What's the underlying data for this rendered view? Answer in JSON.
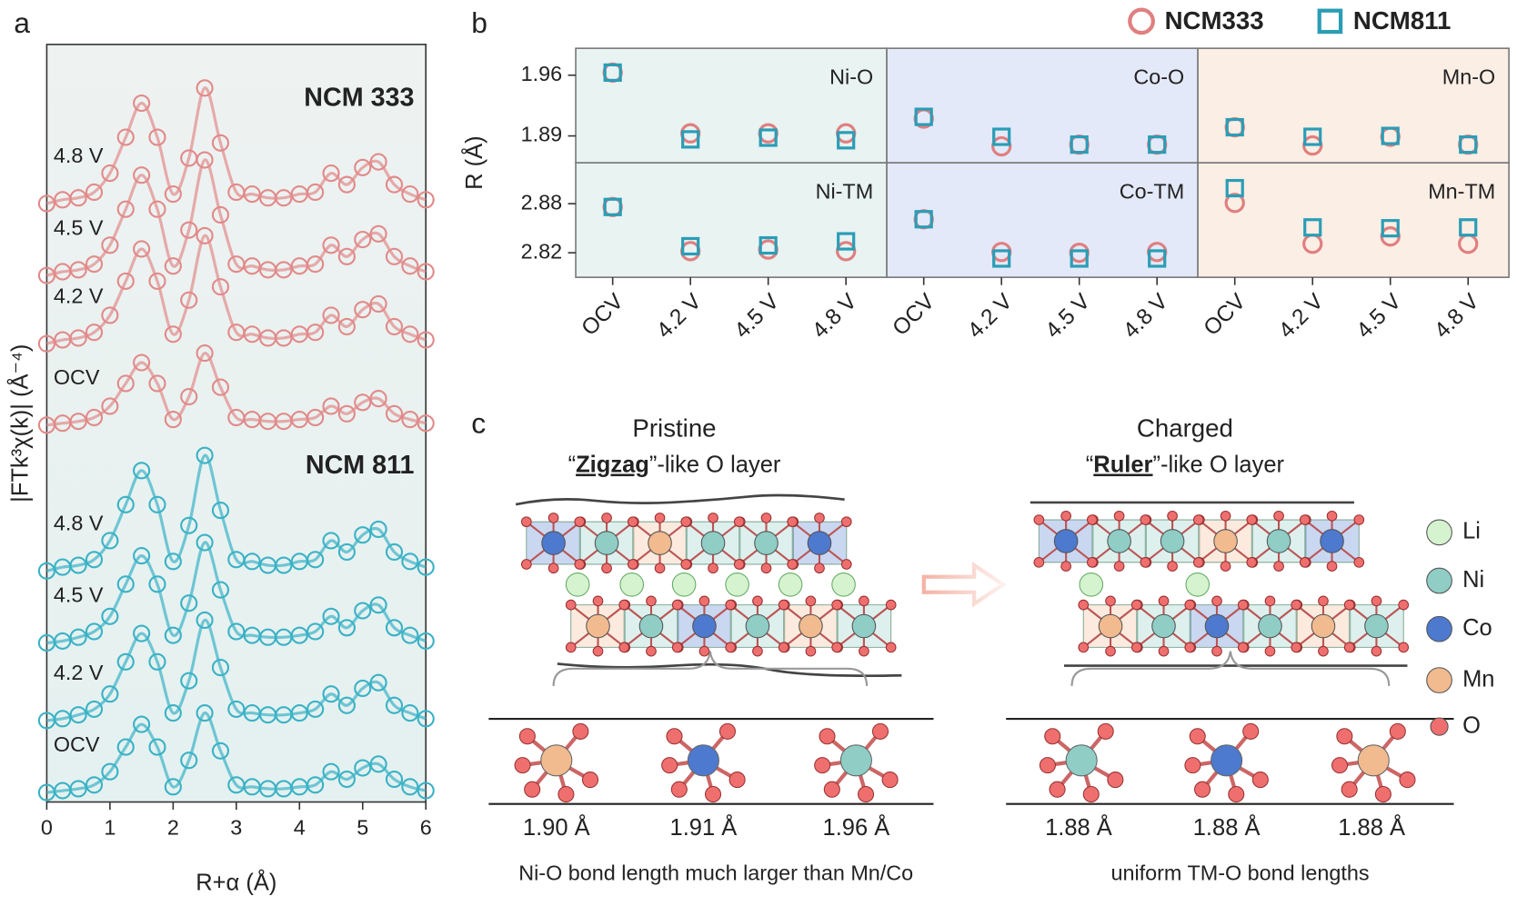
{
  "chart_data": [
    {
      "type": "line",
      "panel_label": "a",
      "xlabel": "R+α (Å)",
      "ylabel": "|FTk³χ(k)| (Å⁻⁴)",
      "xlim": [
        0,
        6
      ],
      "xticks": [
        0,
        1,
        2,
        3,
        4,
        5,
        6
      ],
      "ylim": [
        0,
        40
      ],
      "x": [
        0,
        0.25,
        0.5,
        0.75,
        1,
        1.25,
        1.5,
        1.75,
        2,
        2.25,
        2.5,
        2.75,
        3,
        3.25,
        3.5,
        3.75,
        4,
        4.25,
        4.5,
        4.75,
        5,
        5.25,
        5.5,
        5.75,
        6
      ],
      "groups": [
        {
          "name": "NCM 333",
          "color": "#e28a8a",
          "series": [
            {
              "name": "4.8 V",
              "values": [
                31.6,
                31.8,
                31.9,
                32.2,
                33.2,
                35.1,
                36.9,
                35.1,
                32.1,
                34.0,
                37.7,
                34.8,
                32.2,
                32.1,
                31.9,
                31.9,
                32.1,
                32.2,
                33.2,
                32.6,
                33.5,
                33.8,
                32.6,
                32.1,
                31.8
              ]
            },
            {
              "name": "4.5 V",
              "values": [
                27.8,
                28.0,
                28.1,
                28.4,
                29.4,
                31.3,
                33.1,
                31.3,
                28.3,
                30.2,
                33.9,
                31.0,
                28.4,
                28.3,
                28.1,
                28.1,
                28.3,
                28.4,
                29.4,
                28.8,
                29.7,
                30.0,
                28.8,
                28.3,
                28.0
              ]
            },
            {
              "name": "4.2 V",
              "values": [
                24.2,
                24.4,
                24.5,
                24.8,
                25.7,
                27.5,
                29.2,
                27.5,
                24.7,
                26.5,
                29.9,
                27.2,
                24.8,
                24.7,
                24.5,
                24.5,
                24.7,
                24.8,
                25.7,
                25.1,
                26.0,
                26.3,
                25.1,
                24.7,
                24.4
              ]
            },
            {
              "name": "OCV",
              "values": [
                19.9,
                20.0,
                20.1,
                20.3,
                20.9,
                22.1,
                23.2,
                22.1,
                20.2,
                21.4,
                23.7,
                21.9,
                20.3,
                20.2,
                20.1,
                20.1,
                20.2,
                20.3,
                20.9,
                20.5,
                21.1,
                21.3,
                20.5,
                20.2,
                20.0
              ]
            }
          ]
        },
        {
          "name": "NCM 811",
          "color": "#3bb2c6",
          "series": [
            {
              "name": "4.8 V",
              "values": [
                12.2,
                12.4,
                12.5,
                12.8,
                13.8,
                15.7,
                17.5,
                15.7,
                12.7,
                14.6,
                18.3,
                15.4,
                12.8,
                12.7,
                12.5,
                12.5,
                12.7,
                12.8,
                13.8,
                13.2,
                14.1,
                14.4,
                13.2,
                12.7,
                12.4
              ]
            },
            {
              "name": "4.5 V",
              "values": [
                8.4,
                8.5,
                8.7,
                9.0,
                9.8,
                11.5,
                13.0,
                11.5,
                8.8,
                10.5,
                13.7,
                11.2,
                9.0,
                8.8,
                8.7,
                8.7,
                8.8,
                9.0,
                9.8,
                9.2,
                10.1,
                10.4,
                9.2,
                8.8,
                8.5
              ]
            },
            {
              "name": "4.2 V",
              "values": [
                4.3,
                4.4,
                4.6,
                4.9,
                5.7,
                7.4,
                8.9,
                7.4,
                4.7,
                6.4,
                9.6,
                7.1,
                4.9,
                4.7,
                4.6,
                4.6,
                4.7,
                4.9,
                5.7,
                5.1,
                6.0,
                6.3,
                5.1,
                4.7,
                4.4
              ]
            },
            {
              "name": "OCV",
              "values": [
                0.5,
                0.6,
                0.7,
                0.9,
                1.6,
                2.9,
                4.1,
                2.9,
                0.8,
                2.2,
                4.7,
                2.7,
                0.9,
                0.8,
                0.7,
                0.7,
                0.8,
                0.9,
                1.6,
                1.2,
                1.8,
                2.0,
                1.2,
                0.8,
                0.6
              ]
            }
          ]
        }
      ]
    },
    {
      "type": "dot",
      "panel_label": "b",
      "ylabel": "R (Å)",
      "categories": [
        "OCV",
        "4.2 V",
        "4.5 V",
        "4.8 V",
        "OCV",
        "4.2 V",
        "4.5 V",
        "4.8 V",
        "OCV",
        "4.2 V",
        "4.5 V",
        "4.8 V"
      ],
      "panel_colors": [
        "#e8f3f2",
        "#e3e9f8",
        "#fbeee5"
      ],
      "rows": [
        {
          "panels": [
            "Ni-O",
            "Co-O",
            "Mn-O"
          ],
          "ylim": [
            1.859,
            1.991
          ],
          "yticks": [
            1.89,
            1.96
          ]
        },
        {
          "panels": [
            "Ni-TM",
            "Co-TM",
            "Mn-TM"
          ],
          "ylim": [
            2.79,
            2.93
          ],
          "yticks": [
            2.82,
            2.88
          ]
        }
      ],
      "series": [
        {
          "name": "NCM333",
          "color": "#e07f80",
          "marker": "circle",
          "values": [
            [
              1.963,
              1.893,
              1.893,
              1.893,
              1.91,
              1.878,
              1.88,
              1.88,
              1.9,
              1.879,
              1.889,
              1.88
            ],
            [
              2.876,
              2.822,
              2.824,
              2.822,
              2.861,
              2.821,
              2.82,
              2.821,
              2.881,
              2.831,
              2.84,
              2.831
            ]
          ]
        },
        {
          "name": "NCM811",
          "color": "#2a9db6",
          "marker": "square",
          "values": [
            [
              1.963,
              1.886,
              1.888,
              1.885,
              1.912,
              1.889,
              1.88,
              1.88,
              1.9,
              1.889,
              1.89,
              1.88
            ],
            [
              2.876,
              2.828,
              2.829,
              2.834,
              2.861,
              2.813,
              2.813,
              2.813,
              2.899,
              2.851,
              2.85,
              2.851
            ]
          ]
        }
      ]
    }
  ],
  "diagram": {
    "panel_label": "c",
    "pristine": {
      "title": "Pristine",
      "subtitle": {
        "open": "“",
        "key": "Zigzag",
        "rest": "”-like O layer"
      },
      "bonds": [
        "1.90 Å",
        "1.91 Å",
        "1.96 Å"
      ],
      "caption": "Ni-O bond length much larger than Mn/Co"
    },
    "charged": {
      "title": "Charged",
      "subtitle": {
        "open": "“",
        "key": "Ruler",
        "rest": "”-like O layer"
      },
      "bonds": [
        "1.88 Å",
        "1.88 Å",
        "1.88 Å"
      ],
      "caption": "uniform TM-O bond lengths"
    },
    "legend": [
      "Li",
      "Ni",
      "Co",
      "Mn",
      "O"
    ]
  }
}
